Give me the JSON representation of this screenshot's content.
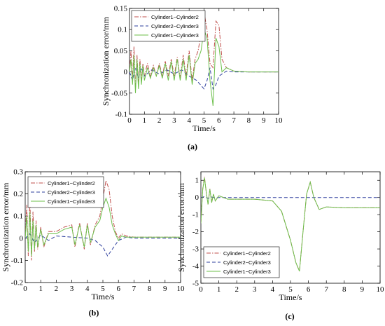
{
  "chart_data": [
    {
      "id": "a",
      "type": "line",
      "panel_label": "(a)",
      "xlabel": "Time/s",
      "ylabel": "Synchronization error/mm",
      "xlim": [
        0,
        10
      ],
      "ylim": [
        -0.1,
        0.15
      ],
      "xticks": [
        0,
        1,
        2,
        3,
        4,
        5,
        6,
        7,
        8,
        9,
        10
      ],
      "yticks": [
        -0.1,
        -0.05,
        0,
        0.05,
        0.1,
        0.15
      ],
      "ytick_labels": [
        "-0.1",
        "-0.05",
        "0",
        "0.05",
        "0.1",
        "0.15"
      ],
      "legend_position": "top-left",
      "grid": false,
      "series": [
        {
          "name": "Cylinder1−Cylinder2",
          "color": "#c0504d",
          "dash": "6,2,1.5,2",
          "x": [
            0,
            0.1,
            0.2,
            0.3,
            0.4,
            0.5,
            0.6,
            0.7,
            0.8,
            0.9,
            1.0,
            1.2,
            1.4,
            1.6,
            1.8,
            2.0,
            2.2,
            2.4,
            2.6,
            2.8,
            3.0,
            3.2,
            3.4,
            3.6,
            3.8,
            4.0,
            4.2,
            4.4,
            4.6,
            4.8,
            5.0,
            5.2,
            5.4,
            5.6,
            5.8,
            6.0,
            6.2,
            6.5,
            7.0,
            8.0,
            9.0,
            10.0
          ],
          "y": [
            0,
            0.05,
            -0.02,
            0.06,
            -0.04,
            0.04,
            -0.03,
            0.03,
            -0.02,
            0.02,
            -0.01,
            0.02,
            -0.01,
            0.015,
            -0.01,
            0.02,
            -0.01,
            0.025,
            -0.01,
            0.03,
            -0.01,
            0.035,
            -0.015,
            0.04,
            -0.01,
            0.05,
            -0.02,
            0.03,
            0.05,
            0.09,
            0.14,
            0.1,
            0.02,
            0.01,
            0.12,
            0.11,
            0.03,
            0.01,
            0.002,
            0,
            0,
            0
          ]
        },
        {
          "name": "Cylinder2−Cylinder3",
          "color": "#2e3f9e",
          "dash": "5,3",
          "x": [
            0,
            0.2,
            0.4,
            0.6,
            0.8,
            1.0,
            1.5,
            2.0,
            2.5,
            3.0,
            3.5,
            4.0,
            4.5,
            5.0,
            5.2,
            5.4,
            5.6,
            5.8,
            6.0,
            6.2,
            6.5,
            7.0,
            8.0,
            10.0
          ],
          "y": [
            0,
            -0.02,
            0.01,
            -0.015,
            0.01,
            -0.01,
            0.005,
            -0.005,
            0.005,
            -0.005,
            0.005,
            -0.01,
            -0.02,
            -0.04,
            -0.02,
            0.01,
            -0.04,
            -0.03,
            -0.01,
            -0.005,
            0.002,
            0,
            0,
            0
          ]
        },
        {
          "name": "Cylinder1−Cylinder3",
          "color": "#6cbf4a",
          "dash": "none",
          "x": [
            0,
            0.1,
            0.2,
            0.3,
            0.4,
            0.5,
            0.6,
            0.7,
            0.8,
            0.9,
            1.0,
            1.2,
            1.4,
            1.6,
            1.8,
            2.0,
            2.2,
            2.4,
            2.6,
            2.8,
            3.0,
            3.2,
            3.4,
            3.6,
            3.8,
            4.0,
            4.2,
            4.4,
            4.6,
            4.8,
            5.0,
            5.2,
            5.4,
            5.6,
            5.8,
            6.0,
            6.2,
            6.5,
            7.0,
            8.0,
            10.0
          ],
          "y": [
            0,
            0.03,
            -0.03,
            0.04,
            -0.05,
            0.03,
            -0.04,
            0.02,
            -0.03,
            0.015,
            -0.02,
            0.01,
            -0.015,
            0.01,
            -0.01,
            0.015,
            -0.015,
            0.02,
            -0.02,
            0.025,
            -0.02,
            0.03,
            -0.02,
            0.03,
            -0.02,
            0.04,
            -0.03,
            0.02,
            0.03,
            0.05,
            0.1,
            0.08,
            -0.02,
            -0.08,
            0.08,
            0.06,
            0.0,
            0.01,
            0.002,
            0,
            0
          ]
        }
      ]
    },
    {
      "id": "b",
      "type": "line",
      "panel_label": "(b)",
      "xlabel": "Time/s",
      "ylabel": "Synchronization error/mm",
      "xlim": [
        0,
        10
      ],
      "ylim": [
        -0.2,
        0.3
      ],
      "xticks": [
        0,
        1,
        2,
        3,
        4,
        5,
        6,
        7,
        8,
        9,
        10
      ],
      "yticks": [
        -0.2,
        -0.1,
        0,
        0.1,
        0.2,
        0.3
      ],
      "ytick_labels": [
        "-0.2",
        "-0.1",
        "0",
        "0.1",
        "0.2",
        "0.3"
      ],
      "legend_position": "top-left",
      "grid": false,
      "series": [
        {
          "name": "Cylinder1−Cylinder2",
          "color": "#c0504d",
          "dash": "6,2,1.5,2",
          "x": [
            0,
            0.1,
            0.2,
            0.3,
            0.4,
            0.5,
            0.6,
            0.7,
            0.8,
            1.0,
            1.2,
            1.5,
            2.0,
            2.5,
            3.0,
            3.2,
            3.5,
            3.8,
            4.0,
            4.2,
            4.5,
            4.8,
            5.0,
            5.2,
            5.4,
            5.6,
            5.8,
            6.0,
            6.2,
            6.5,
            7.0,
            8.0,
            10.0
          ],
          "y": [
            0,
            0.15,
            -0.08,
            0.18,
            -0.1,
            0.12,
            -0.06,
            0.08,
            -0.05,
            0.05,
            -0.04,
            0.03,
            0.03,
            0.05,
            0.06,
            -0.04,
            0.07,
            -0.05,
            0.07,
            -0.03,
            0.06,
            0.1,
            0.18,
            0.26,
            0.22,
            0.1,
            0.03,
            0.0,
            0.02,
            0.01,
            0.005,
            0.005,
            0.005
          ]
        },
        {
          "name": "Cylinder2−Cylinder3",
          "color": "#2e3f9e",
          "dash": "5,3",
          "x": [
            0,
            0.3,
            0.6,
            1.0,
            1.5,
            2.0,
            3.0,
            4.0,
            4.5,
            5.0,
            5.3,
            5.6,
            6.0,
            6.5,
            7.0,
            8.0,
            10.0
          ],
          "y": [
            0,
            0.02,
            -0.02,
            0.015,
            -0.01,
            0.01,
            0.005,
            0.0,
            -0.01,
            -0.04,
            -0.08,
            -0.05,
            -0.01,
            0.005,
            0,
            0,
            0
          ]
        },
        {
          "name": "Cylinder1−Cylinder3",
          "color": "#6cbf4a",
          "dash": "none",
          "x": [
            0,
            0.1,
            0.2,
            0.3,
            0.4,
            0.5,
            0.6,
            0.7,
            0.8,
            1.0,
            1.2,
            1.5,
            2.0,
            2.5,
            3.0,
            3.2,
            3.5,
            3.8,
            4.0,
            4.2,
            4.5,
            4.8,
            5.0,
            5.2,
            5.4,
            5.6,
            5.8,
            6.0,
            6.2,
            6.5,
            7.0,
            8.0,
            10.0
          ],
          "y": [
            0,
            0.1,
            -0.06,
            0.12,
            -0.08,
            0.08,
            -0.05,
            0.06,
            -0.04,
            0.04,
            -0.03,
            0.02,
            0.02,
            0.04,
            0.05,
            -0.03,
            0.06,
            -0.04,
            0.06,
            -0.02,
            0.05,
            0.08,
            0.14,
            0.18,
            0.14,
            0.06,
            0.02,
            -0.01,
            0.01,
            0.005,
            0.005,
            0.005,
            0.005
          ]
        }
      ]
    },
    {
      "id": "c",
      "type": "line",
      "panel_label": "(c)",
      "xlabel": "Time/s",
      "ylabel": "Synchronization error/mm",
      "xlim": [
        0,
        10
      ],
      "ylim": [
        -5,
        1.5
      ],
      "xticks": [
        0,
        1,
        2,
        3,
        4,
        5,
        6,
        7,
        8,
        9,
        10
      ],
      "yticks": [
        -5,
        -4,
        -3,
        -2,
        -1,
        0,
        1
      ],
      "ytick_labels": [
        "-5",
        "-4",
        "-3",
        "-2",
        "-1",
        "0",
        "1"
      ],
      "legend_position": "bottom-left",
      "grid": false,
      "series": [
        {
          "name": "Cylinder1−Cylinder2",
          "color": "#c0504d",
          "dash": "6,2,1.5,2",
          "x": [
            0,
            0.1,
            0.2,
            0.3,
            0.4,
            0.5,
            0.6,
            0.7,
            0.8,
            1.0,
            1.5,
            2.0,
            3.0,
            4.0,
            4.5,
            5.0,
            5.3,
            5.5,
            5.7,
            5.9,
            6.1,
            6.3,
            6.6,
            7.0,
            8.0,
            9.0,
            10.0
          ],
          "y": [
            -1.5,
            0.5,
            1.2,
            0.3,
            -0.4,
            0.5,
            -0.3,
            0.2,
            -0.2,
            0.1,
            -0.1,
            -0.1,
            -0.1,
            -0.2,
            -0.8,
            -2.5,
            -3.8,
            -4.3,
            -2.0,
            0.2,
            0.9,
            0.0,
            -0.7,
            -0.55,
            -0.6,
            -0.6,
            -0.6
          ]
        },
        {
          "name": "Cylinder2−Cylinder3",
          "color": "#2e3f9e",
          "dash": "5,3",
          "x": [
            0,
            0.2,
            0.4,
            0.6,
            0.8,
            1.0,
            2.0,
            10.0
          ],
          "y": [
            0,
            0.05,
            -0.05,
            0.03,
            -0.02,
            0.0,
            0.0,
            0.0
          ]
        },
        {
          "name": "Cylinder1−Cylinder3",
          "color": "#6cbf4a",
          "dash": "none",
          "x": [
            0,
            0.1,
            0.2,
            0.3,
            0.4,
            0.5,
            0.6,
            0.7,
            0.8,
            1.0,
            1.5,
            2.0,
            3.0,
            4.0,
            4.5,
            5.0,
            5.3,
            5.5,
            5.7,
            5.9,
            6.1,
            6.3,
            6.6,
            7.0,
            8.0,
            9.0,
            10.0
          ],
          "y": [
            -1.5,
            0.45,
            1.15,
            0.28,
            -0.4,
            0.48,
            -0.3,
            0.2,
            -0.2,
            0.1,
            -0.1,
            -0.1,
            -0.1,
            -0.2,
            -0.8,
            -2.5,
            -3.8,
            -4.3,
            -2.0,
            0.2,
            0.9,
            0.0,
            -0.7,
            -0.55,
            -0.6,
            -0.6,
            -0.6
          ]
        }
      ]
    }
  ]
}
